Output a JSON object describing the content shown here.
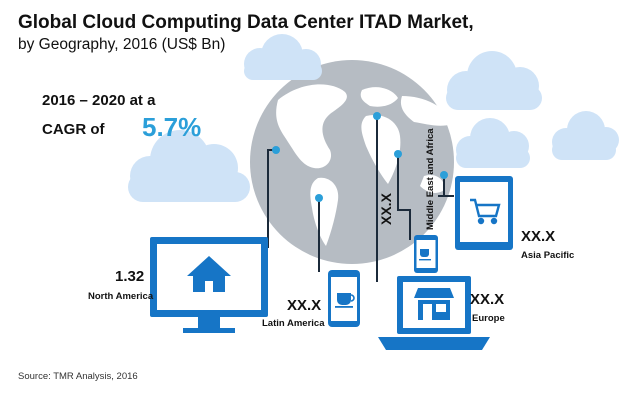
{
  "title": "Global Cloud Computing Data Center ITAD Market,",
  "subtitle": "by Geography, 2016 (US$ Bn)",
  "cagr": {
    "line1": "2016 – 2020 at a",
    "label": "CAGR of",
    "value": "5.7%"
  },
  "source": "Source: TMR Analysis, 2016",
  "colors": {
    "device_blue": "#1675c6",
    "accent_blue": "#2b9fd9",
    "cloud": "#cfe3f7",
    "globe": "#b6bcc3",
    "line": "#1b2a3a"
  },
  "icons": [
    "house-icon",
    "coffee-cup-icon",
    "shop-icon",
    "cart-icon"
  ],
  "chart_data": {
    "type": "table",
    "title": "Global Cloud Computing Data Center ITAD Market,",
    "subtitle": "by Geography, 2016 (US$ Bn)",
    "categories": [
      "North America",
      "Latin America",
      "Europe",
      "Middle East and Africa",
      "Asia Pacific"
    ],
    "values": [
      "1.32",
      "XX.X",
      "XX.X",
      "XX.X",
      "XX.X"
    ]
  }
}
